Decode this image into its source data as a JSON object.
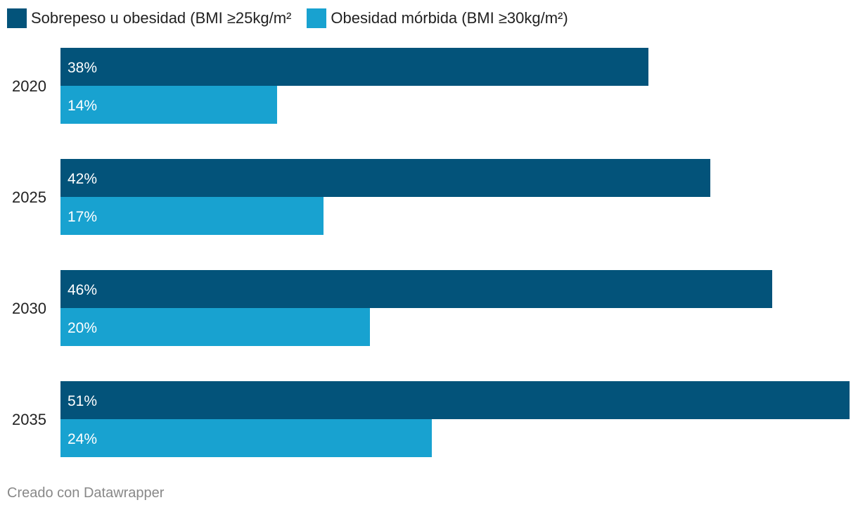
{
  "colors": {
    "series1": "#03537a",
    "series2": "#18a2d0",
    "label_text": "#ffffff",
    "axis_text": "#222222",
    "footer_text": "#888888"
  },
  "chart_data": {
    "type": "bar",
    "orientation": "horizontal",
    "categories": [
      "2020",
      "2025",
      "2030",
      "2035"
    ],
    "series": [
      {
        "name": "Sobrepeso u obesidad (BMI ≥25kg/m²",
        "values": [
          38,
          42,
          46,
          51
        ],
        "labels": [
          "38%",
          "42%",
          "46%",
          "51%"
        ]
      },
      {
        "name": "Obesidad mórbida (BMI ≥30kg/m²)",
        "values": [
          14,
          17,
          20,
          24
        ],
        "labels": [
          "14%",
          "17%",
          "20%",
          "24%"
        ]
      }
    ],
    "xlim": [
      0,
      51
    ],
    "grid": false,
    "legend_position": "top-left"
  },
  "footer": {
    "credit": "Creado con Datawrapper"
  }
}
